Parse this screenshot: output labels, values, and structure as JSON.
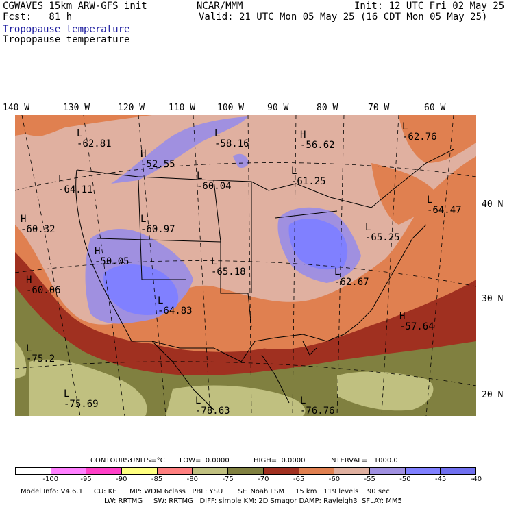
{
  "header": {
    "left1": "CGWAVES 15km ARW-GFS init",
    "left2": "Fcst:   81 h",
    "center": "NCAR/MMM",
    "right1": "Init: 12 UTC Fri 02 May 25",
    "right2": "Valid: 21 UTC Mon 05 May 25 (16 CDT Mon 05 May 25)",
    "field1": "Tropopause temperature",
    "field2": "Tropopause temperature"
  },
  "lon_labels": [
    "140 W",
    "130 W",
    "120 W",
    "110 W",
    "100 W",
    "90 W",
    "80 W",
    "70 W",
    "60 W"
  ],
  "lat_labels": [
    "40 N",
    "30 N",
    "20 N"
  ],
  "pressure_centers": [
    {
      "type": "L",
      "value": "-62.81"
    },
    {
      "type": "L",
      "value": "-58.16"
    },
    {
      "type": "H",
      "value": "-56.62"
    },
    {
      "type": "L",
      "value": "-62.76"
    },
    {
      "type": "H",
      "value": "-52.55"
    },
    {
      "type": "L",
      "value": "-64.11"
    },
    {
      "type": "L",
      "value": "-60.04"
    },
    {
      "type": "L",
      "value": "-61.25"
    },
    {
      "type": "L",
      "value": "-64.47"
    },
    {
      "type": "H",
      "value": "-60.32"
    },
    {
      "type": "L",
      "value": "-60.97"
    },
    {
      "type": "L",
      "value": "-65.25"
    },
    {
      "type": "H",
      "value": "-50.05"
    },
    {
      "type": "L",
      "value": "-65.18"
    },
    {
      "type": "H",
      "value": "-60.06"
    },
    {
      "type": "L",
      "value": "-62.67"
    },
    {
      "type": "L",
      "value": "-64.83"
    },
    {
      "type": "H",
      "value": "-57.64"
    },
    {
      "type": "L",
      "value": "-75.2"
    },
    {
      "type": "L",
      "value": "-75.69"
    },
    {
      "type": "L",
      "value": "-78.63"
    },
    {
      "type": "L",
      "value": "-76.76"
    }
  ],
  "contour_info": {
    "contours": "CONTOURS:",
    "units": "UNITS=°C",
    "low": "LOW=  0.0000",
    "high": "HIGH=  0.0000",
    "interval": "INTERVAL=   1000.0"
  },
  "colorbar": {
    "labels": [
      "-100",
      "-95",
      "-90",
      "-85",
      "-80",
      "-75",
      "-70",
      "-65",
      "-60",
      "-55",
      "-50",
      "-45",
      "-40",
      "°C"
    ],
    "colors": [
      "#ffffff",
      "#ff80ff",
      "#ff40c8",
      "#ffff80",
      "#ff8080",
      "#c0c080",
      "#808040",
      "#a03020",
      "#e08050",
      "#e0b0a0",
      "#a090e0",
      "#8080ff",
      "#7070f0"
    ]
  },
  "footer": {
    "line1": "Model Info: V4.6.1     CU: KF      MP: WDM 6class   PBL: YSU       SF: Noah LSM     15 km   119 levels    90 sec",
    "line2": "LW: RRTMG     SW: RRTMG   DIFF: simple KM: 2D Smagor DAMP: Rayleigh3  SFLAY: MM5"
  },
  "colors": {
    "very_cold": "#808040",
    "cold_green": "#c0c080",
    "dark_red": "#a03020",
    "orange": "#e08050",
    "pink": "#e0b0a0",
    "lavender": "#a090e0",
    "blue": "#8080ff"
  }
}
